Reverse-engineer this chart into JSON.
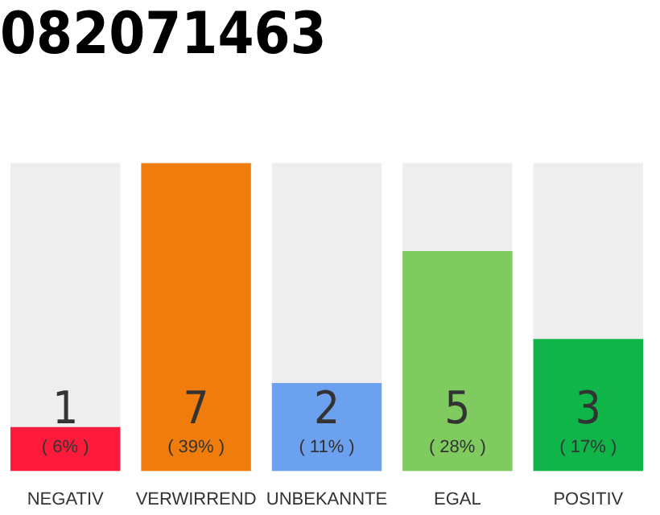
{
  "chart_data": {
    "type": "bar",
    "title": "082071463",
    "categories": [
      "NEGATIV",
      "VERWIRREND",
      "UNBEKANNTE",
      "EGAL",
      "POSITIV"
    ],
    "values": [
      1,
      7,
      2,
      5,
      3
    ],
    "colors": [
      "#fe1a3b",
      "#f07d0b",
      "#6ca1ef",
      "#7fcb5f",
      "#0fb549"
    ],
    "value_labels": [
      "1\n( 6% )",
      "7\n( 39% )",
      "2\n( 11% )",
      "5\n( 28% )",
      "3\n( 17% )"
    ],
    "grid": false,
    "legend": false
  }
}
